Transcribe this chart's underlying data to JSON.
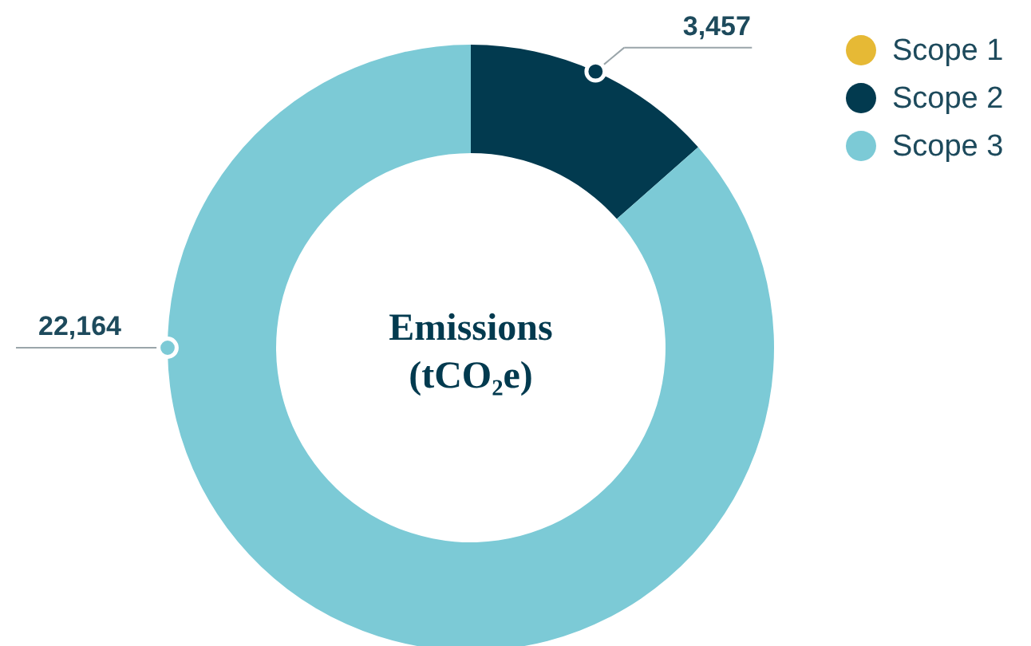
{
  "chart_data": {
    "type": "donut",
    "title": "Emissions (tCO₂e)",
    "categories": [
      "Scope 1",
      "Scope 2",
      "Scope 3"
    ],
    "values": [
      0,
      3457,
      22164
    ],
    "colors": [
      "#e6b935",
      "#023a4f",
      "#7ccad6"
    ],
    "value_labels": [
      null,
      "3,457",
      "22,164"
    ],
    "legend": "top right"
  }
}
